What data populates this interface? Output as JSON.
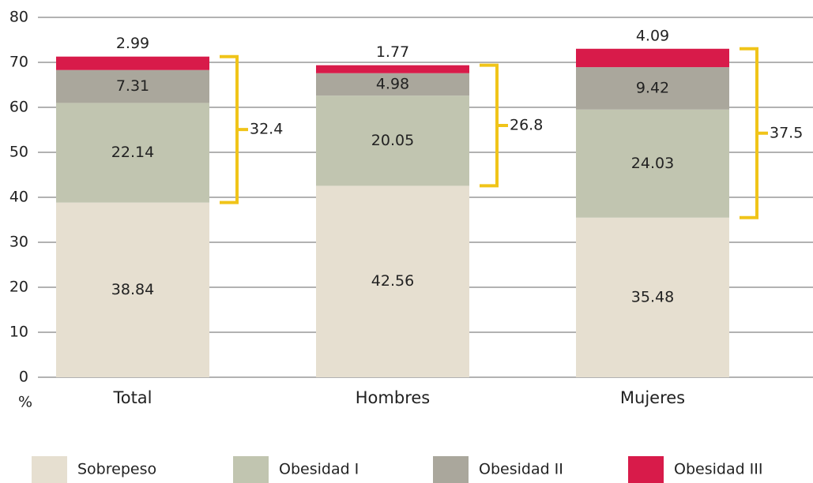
{
  "chart_data": {
    "type": "stacked_bar",
    "y_label": "%",
    "categories": [
      "Total",
      "Hombres",
      "Mujeres"
    ],
    "series": [
      {
        "name": "Sobrepeso",
        "color": "#e6dfd0",
        "values": [
          38.84,
          42.56,
          35.48
        ]
      },
      {
        "name": "Obesidad I",
        "color": "#c1c5b0",
        "values": [
          22.14,
          20.05,
          24.03
        ]
      },
      {
        "name": "Obesidad II",
        "color": "#aaa79c",
        "values": [
          7.31,
          4.98,
          9.42
        ]
      },
      {
        "name": "Obesidad III",
        "color": "#d81b4a",
        "values": [
          2.99,
          1.77,
          4.09
        ]
      }
    ],
    "annotations": [
      32.4,
      26.8,
      37.5
    ],
    "annotation_color": "#f0c419",
    "ylim": [
      0,
      80
    ],
    "yticks": [
      0,
      10,
      20,
      30,
      40,
      50,
      60,
      70,
      80
    ],
    "grid": true
  }
}
